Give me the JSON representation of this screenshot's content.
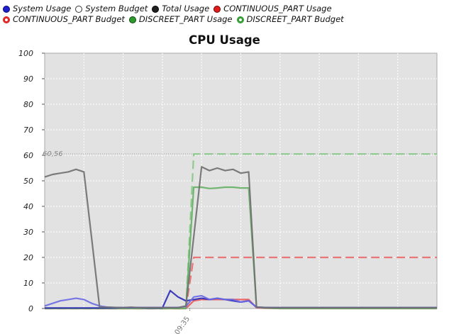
{
  "legend": [
    [
      {
        "label": "System Usage",
        "fill": "#1f1fd0",
        "border": "#0a0a6a"
      },
      {
        "label": "System Budget",
        "fill": "#ffffff",
        "border": "#333333"
      },
      {
        "label": "Total Usage",
        "fill": "#222222",
        "border": "#000000"
      },
      {
        "label": "CONTINUOUS_PART Usage",
        "fill": "#e01e1e",
        "border": "#6a0000"
      }
    ],
    [
      {
        "label": "CONTINUOUS_PART Budget",
        "fill": "#ffffff",
        "border": "#e01e1e",
        "ring": "#e01e1e"
      },
      {
        "label": "DISCREET_PART Usage",
        "fill": "#2e9a2e",
        "border": "#0b4a0b"
      },
      {
        "label": "DISCREET_PART Budget",
        "fill": "#ffffff",
        "border": "#2e9a2e",
        "ring": "#2e9a2e"
      }
    ]
  ],
  "chart_data": {
    "type": "line",
    "title": "CPU Usage",
    "ylim": [
      0,
      100
    ],
    "yticks": [
      0,
      10,
      20,
      30,
      40,
      50,
      60,
      70,
      80,
      90,
      100
    ],
    "x_tick_labels": [
      "09:35"
    ],
    "x_tick_positions": [
      18.5
    ],
    "xlim": [
      0,
      50
    ],
    "grid": true,
    "legend_position": "top",
    "reference_line": {
      "value": 60.56,
      "label": "60,56"
    },
    "series": [
      {
        "name": "Total Usage",
        "color": "#6f6f6f",
        "dash": "",
        "x": [
          0,
          1,
          2,
          3,
          4,
          5,
          6,
          7,
          8,
          9,
          10,
          11,
          12,
          13,
          14,
          15,
          16,
          17,
          18,
          19,
          20,
          21,
          22,
          23,
          24,
          25,
          26,
          27,
          28,
          29,
          30,
          31,
          32,
          33,
          34,
          35,
          36,
          37,
          38,
          39,
          40,
          41,
          42,
          43,
          44,
          45,
          46,
          47,
          48,
          49,
          50
        ],
        "y": [
          51.5,
          52.5,
          53,
          53.5,
          54.5,
          53.5,
          27,
          0.5,
          0.5,
          0.4,
          0.3,
          0.5,
          0.3,
          0.3,
          0.3,
          0.3,
          0.3,
          0.3,
          1,
          28,
          55.5,
          54,
          55,
          54,
          54.5,
          53,
          53.5,
          0.5,
          0.4,
          0.3,
          0.3,
          0.3,
          0.3,
          0.3,
          0.3,
          0.3,
          0.3,
          0.3,
          0.3,
          0.3,
          0.3,
          0.3,
          0.3,
          0.3,
          0.3,
          0.3,
          0.3,
          0.3,
          0.3,
          0.3,
          0.3
        ]
      },
      {
        "name": "System Usage",
        "color": "#6a6ae6",
        "dash": "",
        "x": [
          0,
          1,
          2,
          3,
          4,
          5,
          6,
          7,
          8,
          9,
          10,
          11,
          12,
          13,
          14,
          15,
          16,
          17,
          18,
          19,
          20,
          21,
          22,
          23,
          24,
          25,
          26,
          27,
          28,
          29,
          30,
          31,
          32,
          33,
          34,
          35,
          36,
          37,
          38,
          39,
          40,
          41,
          42,
          43,
          44,
          45,
          46,
          47,
          48,
          49,
          50
        ],
        "y": [
          1,
          2,
          3,
          3.5,
          4,
          3.5,
          2,
          1,
          0.5,
          0.4,
          0.4,
          0.4,
          0.4,
          0.4,
          0.4,
          0.4,
          0.4,
          0.4,
          0.8,
          4.5,
          5,
          3.5,
          4,
          3.5,
          3.5,
          2.5,
          3,
          0.5,
          0.4,
          0.3,
          0.3,
          0.3,
          0.3,
          0.3,
          0.3,
          0.3,
          0.3,
          0.3,
          0.3,
          0.3,
          0.3,
          0.3,
          0.3,
          0.3,
          0.3,
          0.3,
          0.3,
          0.3,
          0.3,
          0.3,
          0.3
        ]
      },
      {
        "name": "System Budget",
        "color": "#2a2ab8",
        "dash": "",
        "x": [
          0,
          1,
          2,
          3,
          4,
          5,
          6,
          7,
          8,
          9,
          10,
          11,
          12,
          13,
          14,
          15,
          16,
          17,
          18,
          19,
          20,
          21,
          22,
          23,
          24,
          25,
          26,
          27,
          28,
          29,
          30,
          31,
          32,
          33,
          34,
          35,
          36,
          37,
          38,
          39,
          40,
          41,
          42,
          43,
          44,
          45,
          46,
          47,
          48,
          49,
          50
        ],
        "y": [
          0.2,
          0.2,
          0.2,
          0.2,
          0.2,
          0.2,
          0.2,
          0.2,
          0.2,
          0.2,
          0.3,
          0.4,
          0.3,
          0.2,
          0.2,
          0.2,
          7,
          4.5,
          3,
          3.5,
          4,
          3.5,
          4,
          3.5,
          3,
          2.5,
          3,
          0.5,
          0.4,
          0.3,
          0.3,
          0.3,
          0.3,
          0.3,
          0.3,
          0.3,
          0.3,
          0.3,
          0.3,
          0.3,
          0.3,
          0.3,
          0.3,
          0.3,
          0.3,
          0.3,
          0.3,
          0.3,
          0.3,
          0.3,
          0.3
        ]
      },
      {
        "name": "CONTINUOUS_PART Usage",
        "color": "#e85a5a",
        "dash": "",
        "x": [
          0,
          10,
          16,
          17,
          18,
          19,
          20,
          21,
          22,
          23,
          24,
          25,
          26,
          27,
          28,
          30,
          50
        ],
        "y": [
          0,
          0,
          0,
          0,
          0,
          3,
          3.5,
          3.5,
          3.5,
          3.5,
          3.5,
          3.5,
          3.5,
          0.3,
          0.1,
          0,
          0
        ]
      },
      {
        "name": "CONTINUOUS_PART Budget",
        "color": "#e96a6a",
        "dash": "12,6",
        "x": [
          0,
          17,
          18,
          19,
          50
        ],
        "y": [
          0,
          0,
          0,
          20,
          20
        ]
      },
      {
        "name": "DISCREET_PART Usage",
        "color": "#64b064",
        "dash": "",
        "x": [
          0,
          17,
          18,
          19,
          20,
          21,
          22,
          23,
          24,
          25,
          26,
          27,
          28,
          30,
          50
        ],
        "y": [
          0,
          0,
          0,
          47.5,
          47.5,
          47,
          47.2,
          47.5,
          47.5,
          47.2,
          47.2,
          0.5,
          0.2,
          0,
          0
        ]
      },
      {
        "name": "DISCREET_PART Budget",
        "color": "#85c785",
        "dash": "12,6",
        "x": [
          0,
          17,
          18,
          19,
          50
        ],
        "y": [
          0,
          0,
          0,
          60.5,
          60.5
        ]
      }
    ]
  }
}
